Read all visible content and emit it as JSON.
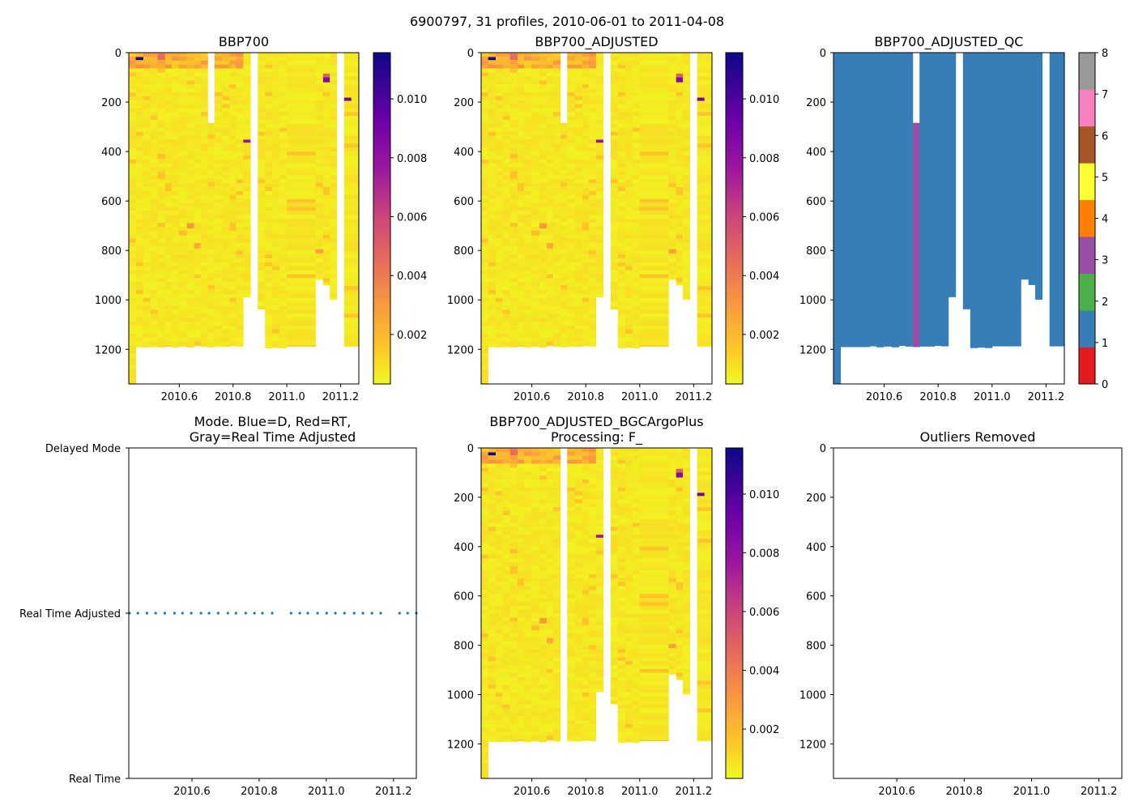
{
  "chart_data": {
    "type": "heatmap",
    "figure_title": "6900797, 31 profiles, 2010-06-01 to 2011-04-08",
    "xlim": [
      2010.412,
      2011.268
    ],
    "depth_lim": [
      1340,
      0
    ],
    "xticks": [
      2010.6,
      2010.8,
      2011.0,
      2011.2
    ],
    "xtick_labels": [
      "2010.6",
      "2010.8",
      "2011.0",
      "2011.2"
    ],
    "yticks": [
      0,
      200,
      400,
      600,
      800,
      1000,
      1200
    ],
    "ytick_labels": [
      "0",
      "200",
      "400",
      "600",
      "800",
      "1000",
      "1200"
    ],
    "profile_columns": [
      {
        "x0": 2010.413,
        "x1": 2010.438,
        "top": 0,
        "bottom": 1340,
        "qc": 1
      },
      {
        "x0": 2010.438,
        "x1": 2010.466,
        "top": 0,
        "bottom": 1191,
        "qc": 1
      },
      {
        "x0": 2010.466,
        "x1": 2010.492,
        "top": 0,
        "bottom": 1191,
        "qc": 1
      },
      {
        "x0": 2010.492,
        "x1": 2010.519,
        "top": 0,
        "bottom": 1191,
        "qc": 1
      },
      {
        "x0": 2010.519,
        "x1": 2010.547,
        "top": 0,
        "bottom": 1191,
        "qc": 1
      },
      {
        "x0": 2010.547,
        "x1": 2010.571,
        "top": 0,
        "bottom": 1188,
        "qc": 1
      },
      {
        "x0": 2010.571,
        "x1": 2010.598,
        "top": 0,
        "bottom": 1192,
        "qc": 1
      },
      {
        "x0": 2010.598,
        "x1": 2010.628,
        "top": 0,
        "bottom": 1189,
        "qc": 1
      },
      {
        "x0": 2010.628,
        "x1": 2010.655,
        "top": 0,
        "bottom": 1192,
        "qc": 1
      },
      {
        "x0": 2010.655,
        "x1": 2010.679,
        "top": 0,
        "bottom": 1186,
        "qc": 1
      },
      {
        "x0": 2010.679,
        "x1": 2010.706,
        "top": 0,
        "bottom": 1189,
        "qc": 1
      },
      {
        "x0": 2010.706,
        "x1": 2010.731,
        "top": 284,
        "bottom": 1191,
        "qc": 3
      },
      {
        "x0": 2010.731,
        "x1": 2010.76,
        "top": 0,
        "bottom": 1189,
        "qc": 1
      },
      {
        "x0": 2010.76,
        "x1": 2010.787,
        "top": 0,
        "bottom": 1189,
        "qc": 1
      },
      {
        "x0": 2010.787,
        "x1": 2010.811,
        "top": 0,
        "bottom": 1186,
        "qc": 1
      },
      {
        "x0": 2010.811,
        "x1": 2010.838,
        "top": 0,
        "bottom": 1188,
        "qc": 1
      },
      {
        "x0": 2010.838,
        "x1": 2010.865,
        "top": 0,
        "bottom": 989,
        "qc": 1
      },
      {
        "x0": 2010.892,
        "x1": 2010.919,
        "top": 0,
        "bottom": 1038,
        "qc": 1
      },
      {
        "x0": 2010.919,
        "x1": 2010.946,
        "top": 0,
        "bottom": 1195,
        "qc": 1
      },
      {
        "x0": 2010.946,
        "x1": 2010.973,
        "top": 0,
        "bottom": 1193,
        "qc": 1
      },
      {
        "x0": 2010.973,
        "x1": 2011.0,
        "top": 0,
        "bottom": 1195,
        "qc": 1
      },
      {
        "x0": 2011.0,
        "x1": 2011.107,
        "top": 0,
        "bottom": 1188,
        "qc": 1
      },
      {
        "x0": 2011.107,
        "x1": 2011.135,
        "top": 0,
        "bottom": 918,
        "qc": 1
      },
      {
        "x0": 2011.135,
        "x1": 2011.16,
        "top": 0,
        "bottom": 940,
        "qc": 1
      },
      {
        "x0": 2011.16,
        "x1": 2011.186,
        "top": 0,
        "bottom": 999,
        "qc": 1
      },
      {
        "x0": 2011.213,
        "x1": 2011.268,
        "top": 0,
        "bottom": 1188,
        "qc": 1
      }
    ],
    "bbp_background": {
      "deep_value": 0.0007,
      "surface_value": 0.0022,
      "surface_depth": 60
    },
    "bbp_anomalies": [
      {
        "x0": 2010.438,
        "x1": 2010.466,
        "d0": 18,
        "d1": 30,
        "value": 0.0115
      },
      {
        "x0": 2010.519,
        "x1": 2010.547,
        "d0": 5,
        "d1": 30,
        "value": 0.0045
      },
      {
        "x0": 2011.135,
        "x1": 2011.16,
        "d0": 85,
        "d1": 100,
        "value": 0.005
      },
      {
        "x0": 2011.135,
        "x1": 2011.16,
        "d0": 100,
        "d1": 120,
        "value": 0.0085
      },
      {
        "x0": 2011.213,
        "x1": 2011.24,
        "d0": 182,
        "d1": 195,
        "value": 0.009
      },
      {
        "x0": 2010.838,
        "x1": 2010.865,
        "d0": 352,
        "d1": 364,
        "value": 0.0078
      },
      {
        "x0": 2010.628,
        "x1": 2010.655,
        "d0": 690,
        "d1": 712,
        "value": 0.003
      },
      {
        "x0": 2010.655,
        "x1": 2010.679,
        "d0": 770,
        "d1": 792,
        "value": 0.0025
      },
      {
        "x0": 2011.107,
        "x1": 2011.135,
        "d0": 795,
        "d1": 812,
        "value": 0.0028
      },
      {
        "x0": 2010.598,
        "x1": 2010.628,
        "d0": 720,
        "d1": 740,
        "value": 0.0018
      },
      {
        "x0": 2010.519,
        "x1": 2010.547,
        "d0": 410,
        "d1": 428,
        "value": 0.0018
      }
    ],
    "panels": [
      {
        "title": "BBP700",
        "kind": "bbp",
        "hide_qc": [],
        "colorbar": {
          "cmap": "plasma_r",
          "vmin": 0.00032,
          "vmax": 0.01157,
          "ticks": [
            0.002,
            0.004,
            0.006,
            0.008,
            0.01
          ],
          "tick_labels": [
            "0.002",
            "0.004",
            "0.006",
            "0.008",
            "0.010"
          ]
        }
      },
      {
        "title": "BBP700_ADJUSTED",
        "kind": "bbp",
        "hide_qc": [],
        "colorbar": {
          "cmap": "plasma_r",
          "vmin": 0.00032,
          "vmax": 0.01157,
          "ticks": [
            0.002,
            0.004,
            0.006,
            0.008,
            0.01
          ],
          "tick_labels": [
            "0.002",
            "0.004",
            "0.006",
            "0.008",
            "0.010"
          ]
        }
      },
      {
        "title": "BBP700_ADJUSTED_QC",
        "kind": "qc",
        "colorbar": {
          "cmap": "Set1",
          "vmin": 0,
          "vmax": 8,
          "ticks": [
            0,
            1,
            2,
            3,
            4,
            5,
            6,
            7,
            8
          ],
          "tick_labels": [
            "0",
            "1",
            "2",
            "3",
            "4",
            "5",
            "6",
            "7",
            "8"
          ],
          "colors": [
            "#e41a1c",
            "#377eb8",
            "#4daf4a",
            "#984ea3",
            "#ff7f00",
            "#ffff33",
            "#a65628",
            "#f781bf",
            "#999999"
          ]
        }
      },
      {
        "title_lines": [
          "Mode. Blue=D, Red=RT,",
          "Gray=Real Time Adjusted"
        ],
        "kind": "mode",
        "type": "scatter",
        "categories": [
          "Real Time",
          "Real Time Adjusted",
          "Delayed Mode"
        ],
        "mode_color": "#1f77b4",
        "profile_dates": [
          2010.414,
          2010.439,
          2010.466,
          2010.492,
          2010.519,
          2010.548,
          2010.572,
          2010.598,
          2010.627,
          2010.651,
          2010.678,
          2010.707,
          2010.731,
          2010.76,
          2010.786,
          2010.81,
          2010.839,
          2010.895,
          2010.921,
          2010.945,
          2010.974,
          2011.001,
          2011.027,
          2011.054,
          2011.083,
          2011.109,
          2011.136,
          2011.162,
          2011.218,
          2011.242,
          2011.268
        ],
        "profile_modes": [
          "Real Time Adjusted",
          "Real Time Adjusted",
          "Real Time Adjusted",
          "Real Time Adjusted",
          "Real Time Adjusted",
          "Real Time Adjusted",
          "Real Time Adjusted",
          "Real Time Adjusted",
          "Real Time Adjusted",
          "Real Time Adjusted",
          "Real Time Adjusted",
          "Real Time Adjusted",
          "Real Time Adjusted",
          "Real Time Adjusted",
          "Real Time Adjusted",
          "Real Time Adjusted",
          "Real Time Adjusted",
          "Real Time Adjusted",
          "Real Time Adjusted",
          "Real Time Adjusted",
          "Real Time Adjusted",
          "Real Time Adjusted",
          "Real Time Adjusted",
          "Real Time Adjusted",
          "Real Time Adjusted",
          "Real Time Adjusted",
          "Real Time Adjusted",
          "Real Time Adjusted",
          "Real Time Adjusted",
          "Real Time Adjusted",
          "Real Time Adjusted"
        ]
      },
      {
        "title_lines": [
          "BBP700_ADJUSTED_BGCArgoPlus",
          "Processing: F_"
        ],
        "kind": "bbp",
        "hide_qc": [
          3
        ],
        "colorbar": {
          "cmap": "plasma_r",
          "vmin": 0.00032,
          "vmax": 0.01157,
          "ticks": [
            0.002,
            0.004,
            0.006,
            0.008,
            0.01
          ],
          "tick_labels": [
            "0.002",
            "0.004",
            "0.006",
            "0.008",
            "0.010"
          ]
        }
      },
      {
        "title": "Outliers Removed",
        "kind": "empty"
      }
    ]
  }
}
